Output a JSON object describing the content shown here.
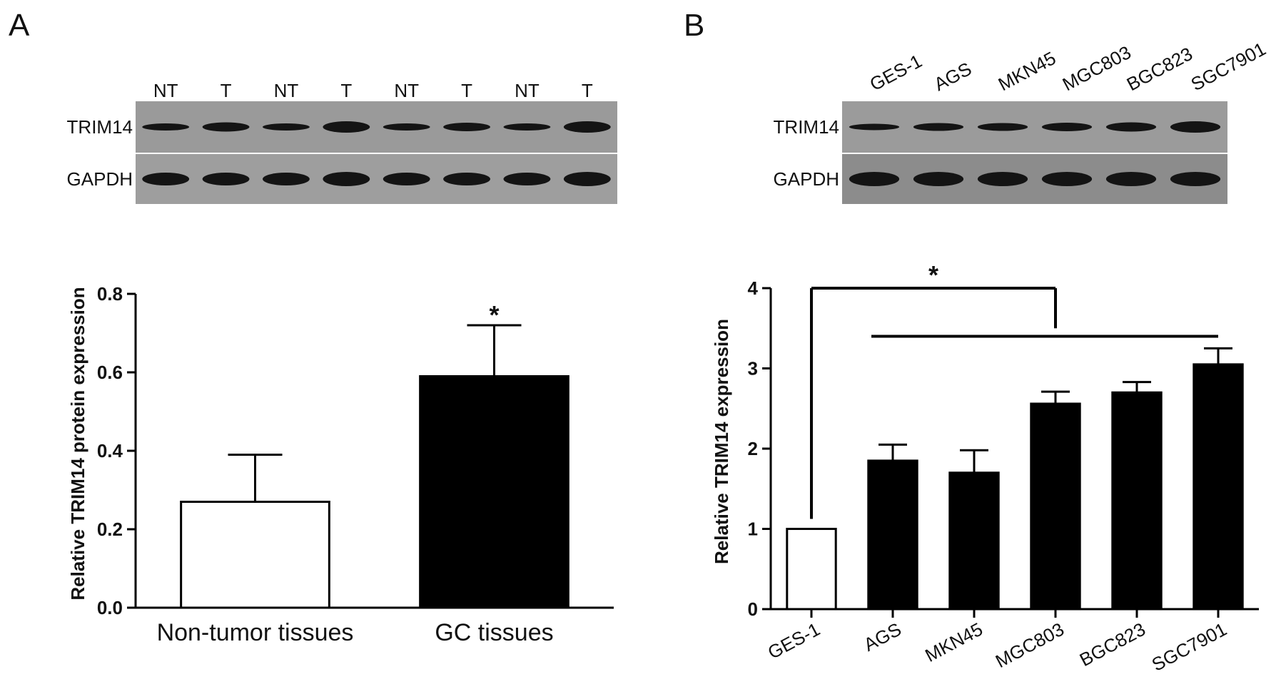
{
  "panels": {
    "a": {
      "letter": "A",
      "blot": {
        "lane_labels": [
          "NT",
          "T",
          "NT",
          "T",
          "NT",
          "T",
          "NT",
          "T"
        ],
        "row_labels": [
          "TRIM14",
          "GAPDH"
        ]
      }
    },
    "b": {
      "letter": "B",
      "blot": {
        "lane_labels": [
          "GES-1",
          "AGS",
          "MKN45",
          "MGC803",
          "BGC823",
          "SGC7901"
        ],
        "row_labels": [
          "TRIM14",
          "GAPDH"
        ]
      }
    }
  },
  "chart_data": [
    {
      "type": "bar",
      "panel": "A",
      "categories": [
        "Non-tumor tissues",
        "GC tissues"
      ],
      "values": [
        0.27,
        0.59
      ],
      "errors": [
        0.12,
        0.13
      ],
      "fills": [
        "#ffffff",
        "#000000"
      ],
      "ylabel": "Relative TRIM14 protein expression",
      "xlabel": "",
      "ylim": [
        0,
        0.8
      ],
      "yticks": [
        "0.0",
        "0.2",
        "0.4",
        "0.6",
        "0.8"
      ],
      "significance": "*"
    },
    {
      "type": "bar",
      "panel": "B",
      "categories": [
        "GES-1",
        "AGS",
        "MKN45",
        "MGC803",
        "BGC823",
        "SGC7901"
      ],
      "values": [
        1.0,
        1.85,
        1.7,
        2.56,
        2.7,
        3.05
      ],
      "errors": [
        0.0,
        0.2,
        0.28,
        0.15,
        0.13,
        0.2
      ],
      "fills": [
        "#ffffff",
        "#000000",
        "#000000",
        "#000000",
        "#000000",
        "#000000"
      ],
      "ylabel": "Relative TRIM14 expression",
      "xlabel": "",
      "ylim": [
        0,
        4
      ],
      "yticks": [
        "0",
        "1",
        "2",
        "3",
        "4"
      ],
      "significance": "*"
    }
  ]
}
